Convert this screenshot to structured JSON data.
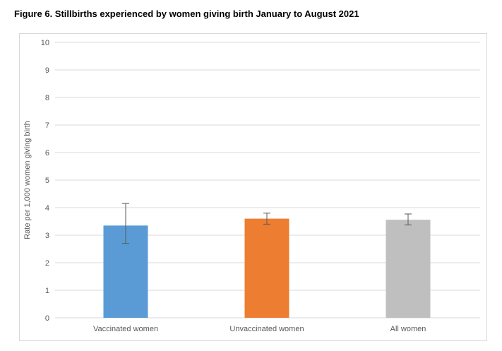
{
  "figure": {
    "title": "Figure 6. Stillbirths experienced by women giving birth January to August 2021"
  },
  "chart_data": {
    "type": "bar",
    "title": "Figure 6. Stillbirths experienced by women giving birth January to August 2021",
    "categories": [
      "Vaccinated women",
      "Unvaccinated women",
      "All women"
    ],
    "values": [
      3.35,
      3.6,
      3.56
    ],
    "error_upper": [
      4.15,
      3.8,
      3.77
    ],
    "error_lower": [
      2.7,
      3.4,
      3.37
    ],
    "xlabel": "",
    "ylabel": "Rate per 1,000 women giving birth",
    "ylim": [
      0,
      10
    ],
    "ytick_step": 1,
    "grid": true,
    "legend_position": "none",
    "bar_colors": [
      "#5B9BD5",
      "#ED7D31",
      "#BFBFBF"
    ],
    "error_color": "#595959",
    "gridline_color": "#D9D9D9",
    "tick_label_color": "#595959"
  }
}
